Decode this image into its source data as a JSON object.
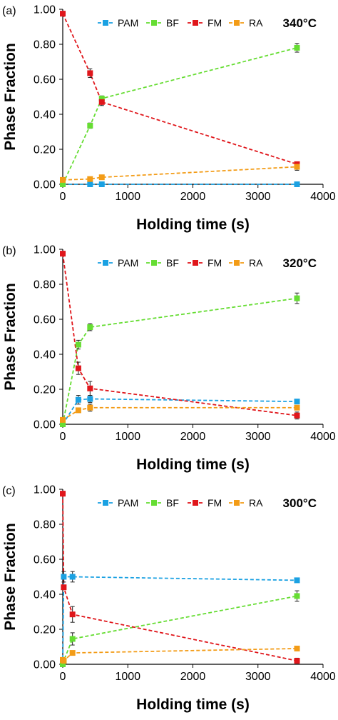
{
  "chart_data": [
    {
      "type": "line",
      "panel_label": "(a)",
      "temperature_label": "340°C",
      "xlabel": "Holding time (s)",
      "ylabel": "Phase Fraction",
      "xlim": [
        0,
        4000
      ],
      "ylim": [
        0,
        1.0
      ],
      "x_ticks": [
        "0",
        "1000",
        "2000",
        "3000",
        "4000"
      ],
      "y_ticks": [
        "0.00",
        "0.20",
        "0.40",
        "0.60",
        "0.80",
        "1.00"
      ],
      "legend_position": "top",
      "series": [
        {
          "name": "PAM",
          "color": "#1ba1e2",
          "x": [
            0,
            420,
            600,
            3600
          ],
          "y": [
            0.0,
            0.0,
            0.0,
            0.0
          ],
          "err": [
            0.0,
            0.0,
            0.0,
            0.0
          ]
        },
        {
          "name": "BF",
          "color": "#66dd33",
          "x": [
            0,
            420,
            600,
            3600
          ],
          "y": [
            0.0,
            0.335,
            0.49,
            0.78
          ],
          "err": [
            0.0,
            0.015,
            0.015,
            0.025
          ]
        },
        {
          "name": "FM",
          "color": "#e0161b",
          "x": [
            0,
            420,
            600,
            3600
          ],
          "y": [
            0.975,
            0.635,
            0.47,
            0.115
          ],
          "err": [
            0.0,
            0.025,
            0.02,
            0.01
          ]
        },
        {
          "name": "RA",
          "color": "#f39c17",
          "x": [
            0,
            420,
            600,
            3600
          ],
          "y": [
            0.025,
            0.03,
            0.04,
            0.1
          ],
          "err": [
            0.0,
            0.005,
            0.01,
            0.02
          ]
        }
      ]
    },
    {
      "type": "line",
      "panel_label": "(b)",
      "temperature_label": "320°C",
      "xlabel": "Holding time (s)",
      "ylabel": "Phase Fraction",
      "xlim": [
        0,
        4000
      ],
      "ylim": [
        0,
        1.0
      ],
      "x_ticks": [
        "0",
        "1000",
        "2000",
        "3000",
        "4000"
      ],
      "y_ticks": [
        "0.00",
        "0.20",
        "0.40",
        "0.60",
        "0.80",
        "1.00"
      ],
      "legend_position": "top",
      "series": [
        {
          "name": "PAM",
          "color": "#1ba1e2",
          "x": [
            0,
            240,
            420,
            3600
          ],
          "y": [
            0.0,
            0.14,
            0.145,
            0.13
          ],
          "err": [
            0.0,
            0.025,
            0.02,
            0.005
          ]
        },
        {
          "name": "BF",
          "color": "#66dd33",
          "x": [
            0,
            240,
            420,
            3600
          ],
          "y": [
            0.0,
            0.455,
            0.555,
            0.72
          ],
          "err": [
            0.0,
            0.025,
            0.02,
            0.03
          ]
        },
        {
          "name": "FM",
          "color": "#e0161b",
          "x": [
            0,
            240,
            420,
            3600
          ],
          "y": [
            0.975,
            0.32,
            0.205,
            0.05
          ],
          "err": [
            0.0,
            0.035,
            0.04,
            0.02
          ]
        },
        {
          "name": "RA",
          "color": "#f39c17",
          "x": [
            0,
            240,
            420,
            3600
          ],
          "y": [
            0.025,
            0.08,
            0.095,
            0.095
          ],
          "err": [
            0.0,
            0.01,
            0.02,
            0.005
          ]
        }
      ]
    },
    {
      "type": "line",
      "panel_label": "(c)",
      "temperature_label": "300°C",
      "xlabel": "Holding time (s)",
      "ylabel": "Phase Fraction",
      "xlim": [
        0,
        4000
      ],
      "ylim": [
        0,
        1.0
      ],
      "x_ticks": [
        "0",
        "1000",
        "2000",
        "3000",
        "4000"
      ],
      "y_ticks": [
        "0.00",
        "0.20",
        "0.40",
        "0.60",
        "0.80",
        "1.00"
      ],
      "legend_position": "top",
      "series": [
        {
          "name": "PAM",
          "color": "#1ba1e2",
          "x": [
            0,
            15,
            150,
            3600
          ],
          "y": [
            0.0,
            0.5,
            0.5,
            0.48
          ],
          "err": [
            0.0,
            0.03,
            0.03,
            0.01
          ]
        },
        {
          "name": "BF",
          "color": "#66dd33",
          "x": [
            0,
            15,
            150,
            3600
          ],
          "y": [
            0.0,
            0.02,
            0.145,
            0.39
          ],
          "err": [
            0.0,
            0.0,
            0.035,
            0.03
          ]
        },
        {
          "name": "FM",
          "color": "#e0161b",
          "x": [
            0,
            15,
            150,
            3600
          ],
          "y": [
            0.975,
            0.44,
            0.285,
            0.02
          ],
          "err": [
            0.0,
            0.0,
            0.045,
            0.015
          ]
        },
        {
          "name": "RA",
          "color": "#f39c17",
          "x": [
            0,
            15,
            150,
            3600
          ],
          "y": [
            0.025,
            0.02,
            0.065,
            0.09
          ],
          "err": [
            0.0,
            0.0,
            0.005,
            0.01
          ]
        }
      ]
    }
  ]
}
